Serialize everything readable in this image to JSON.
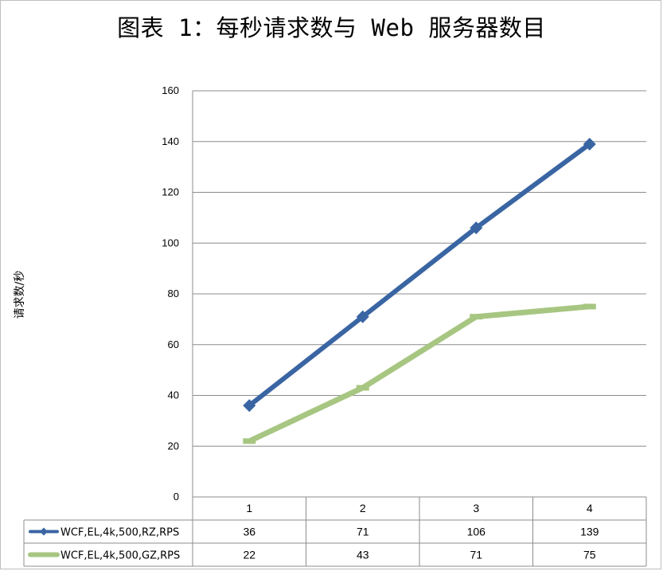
{
  "chart_data": {
    "type": "line",
    "title": "图表 1：每秒请求数与 Web 服务器数目",
    "ylabel": "请求数/秒",
    "xlabel": "",
    "ylim": [
      0,
      160
    ],
    "yticks": [
      0,
      20,
      40,
      60,
      80,
      100,
      120,
      140,
      160
    ],
    "categories": [
      "1",
      "2",
      "3",
      "4"
    ],
    "grid": "horizontal",
    "data_table": true,
    "series": [
      {
        "name": "WCF,EL,4k,500,RZ,RPS",
        "values": [
          36,
          71,
          106,
          139
        ],
        "color": "#3a65a3",
        "marker": "diamond"
      },
      {
        "name": "WCF,EL,4k,500,GZ,RPS",
        "values": [
          22,
          43,
          71,
          75
        ],
        "color": "#a7c682",
        "marker": "dash"
      }
    ]
  }
}
